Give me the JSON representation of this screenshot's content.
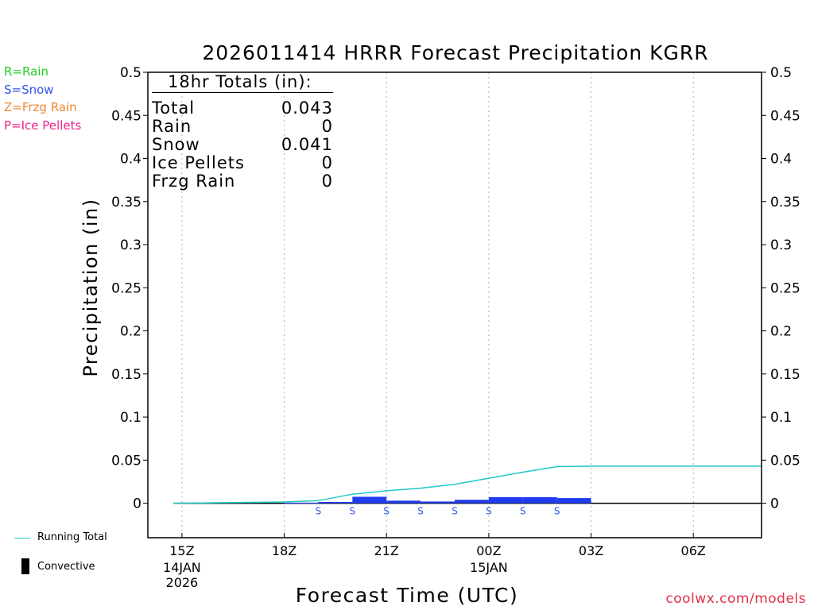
{
  "chart_data": {
    "type": "bar",
    "title": "2026011414 HRRR Forecast Precipitation KGRR",
    "xlabel": "Forecast Time (UTC)",
    "ylabel": "Precipitation (in)",
    "ylim": [
      -0.04,
      0.5
    ],
    "y_ticks": [
      "0",
      "0.05",
      "0.1",
      "0.15",
      "0.2",
      "0.25",
      "0.3",
      "0.35",
      "0.4",
      "0.45",
      "0.5"
    ],
    "x_ticks": [
      {
        "hour": 0,
        "label": "15Z",
        "sub1": "14JAN",
        "sub2": "2026"
      },
      {
        "hour": 3,
        "label": "18Z",
        "sub1": "",
        "sub2": ""
      },
      {
        "hour": 6,
        "label": "21Z",
        "sub1": "",
        "sub2": ""
      },
      {
        "hour": 9,
        "label": "00Z",
        "sub1": "15JAN",
        "sub2": ""
      },
      {
        "hour": 12,
        "label": "03Z",
        "sub1": "",
        "sub2": ""
      },
      {
        "hour": 15,
        "label": "06Z",
        "sub1": "",
        "sub2": ""
      }
    ],
    "hour_range": [
      -1,
      17
    ],
    "hourly_precip": [
      {
        "hour": 3.5,
        "value": 0.0005,
        "type": "S"
      },
      {
        "hour": 4.5,
        "value": 0.0015,
        "type": "S"
      },
      {
        "hour": 5.5,
        "value": 0.0075,
        "type": "S"
      },
      {
        "hour": 6.5,
        "value": 0.003,
        "type": "S"
      },
      {
        "hour": 7.5,
        "value": 0.002,
        "type": "S"
      },
      {
        "hour": 8.5,
        "value": 0.004,
        "type": "S"
      },
      {
        "hour": 9.5,
        "value": 0.007,
        "type": "S"
      },
      {
        "hour": 10.5,
        "value": 0.007,
        "type": "S"
      },
      {
        "hour": 11.5,
        "value": 0.006,
        "type": "S"
      }
    ],
    "type_markers": [
      {
        "hour": 4,
        "label": "S"
      },
      {
        "hour": 5,
        "label": "S"
      },
      {
        "hour": 6,
        "label": "S"
      },
      {
        "hour": 7,
        "label": "S"
      },
      {
        "hour": 8,
        "label": "S"
      },
      {
        "hour": 9,
        "label": "S"
      },
      {
        "hour": 10,
        "label": "S"
      },
      {
        "hour": 11,
        "label": "S"
      }
    ],
    "running_total": {
      "hours": [
        -0.25,
        1,
        2,
        3,
        4,
        5,
        6,
        7,
        8,
        9,
        10,
        11,
        12,
        13,
        14,
        15,
        16,
        17
      ],
      "values": [
        0,
        0.0005,
        0.001,
        0.0015,
        0.003,
        0.0105,
        0.0145,
        0.0175,
        0.022,
        0.029,
        0.036,
        0.0425,
        0.043,
        0.043,
        0.043,
        0.043,
        0.043,
        0.043
      ]
    },
    "colors": {
      "snow_bar": "#1f3cf0",
      "running_total": "#20c8c8",
      "grid": "#b0b0b0"
    }
  },
  "legend": {
    "rain": "R=Rain",
    "snow": "S=Snow",
    "frzg_rain": "Z=Frzg Rain",
    "ice_pellets": "P=Ice Pellets",
    "running_total": "Running Total",
    "convective": "Convective",
    "colors": {
      "rain": "#22cc22",
      "snow": "#3355ee",
      "frzg_rain": "#ee8833",
      "ice_pellets": "#ee2288"
    }
  },
  "totals": {
    "header": "18hr Totals (in):",
    "rows": [
      {
        "label": "Total",
        "value": "0.043"
      },
      {
        "label": "Rain",
        "value": "0"
      },
      {
        "label": "Snow",
        "value": "0.041"
      },
      {
        "label": "Ice Pellets",
        "value": "0"
      },
      {
        "label": "Frzg Rain",
        "value": "0"
      }
    ]
  },
  "credit": "coolwx.com/models"
}
